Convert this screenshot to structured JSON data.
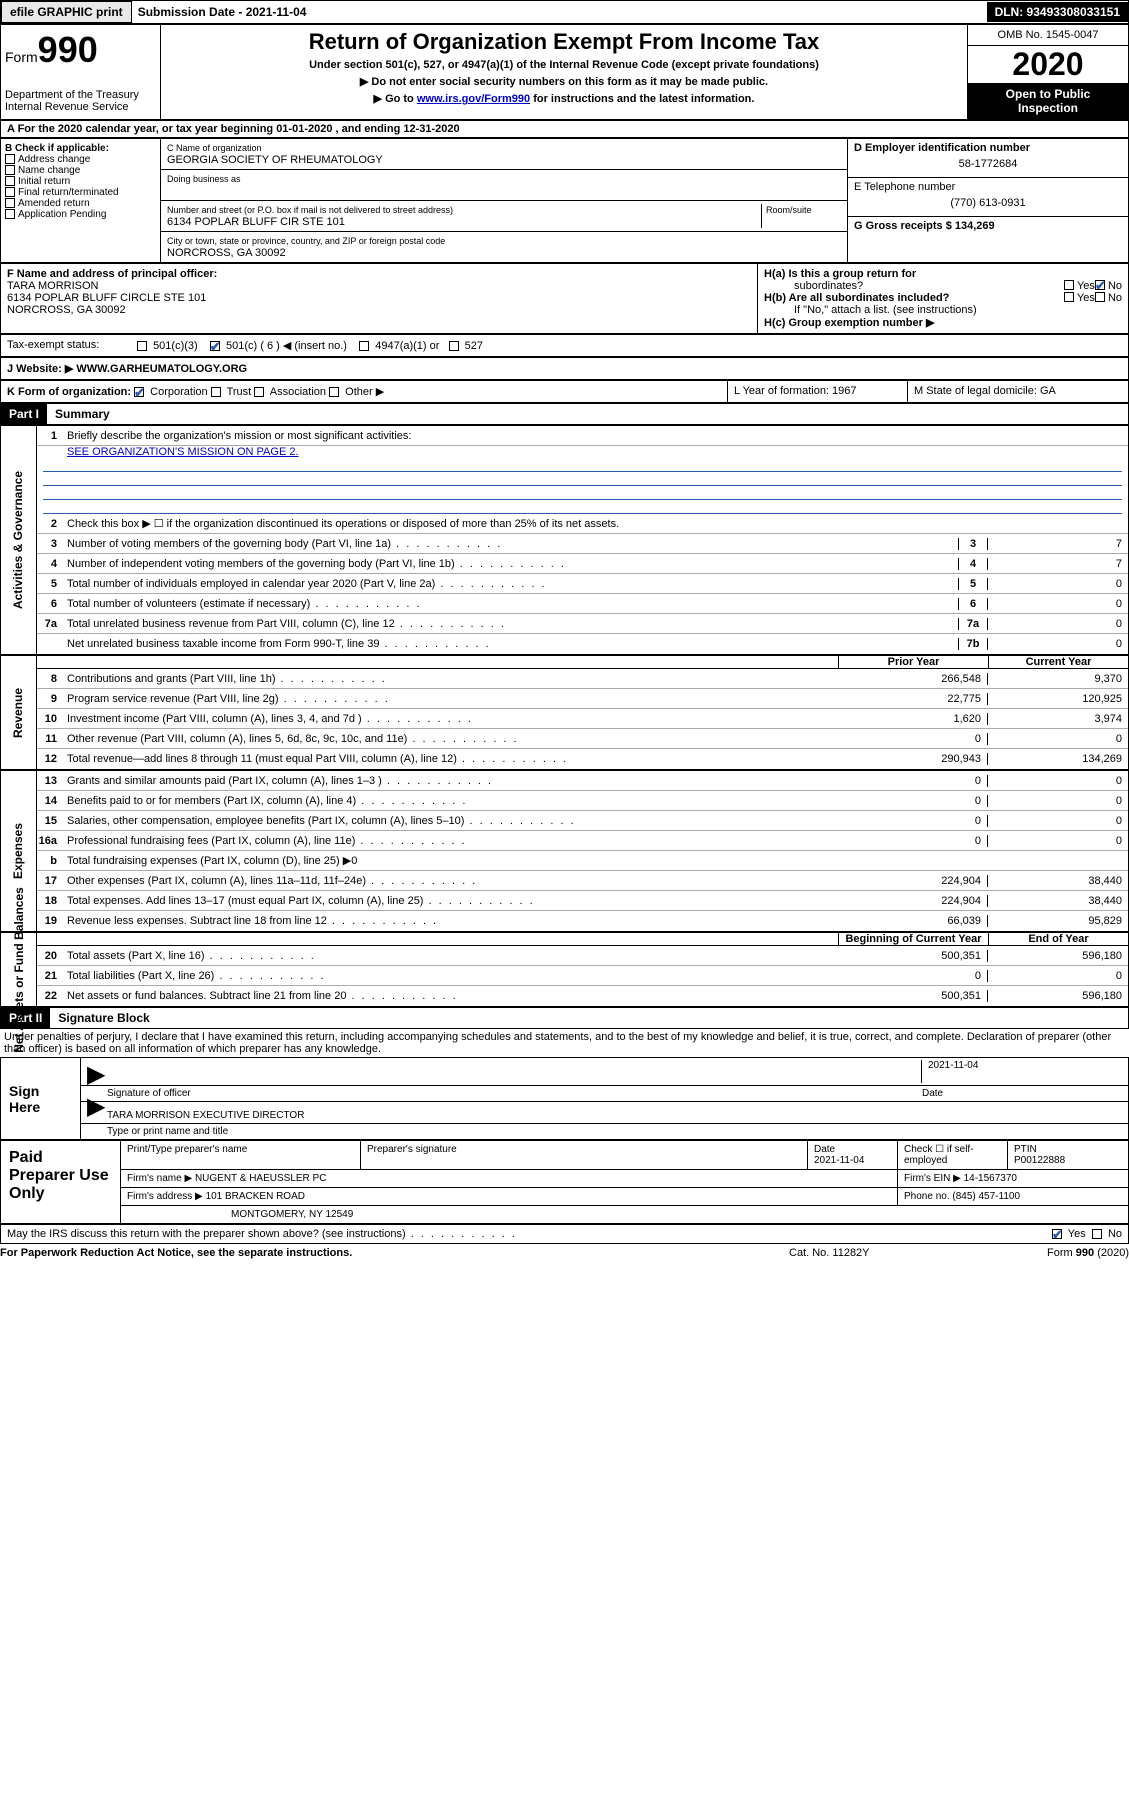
{
  "topbar": {
    "efile": "efile GRAPHIC print",
    "sublabel": "Submission Date - 2021-11-04",
    "dln": "DLN: 93493308033151"
  },
  "header": {
    "form": "Form",
    "formno": "990",
    "dept": "Department of the Treasury",
    "irs": "Internal Revenue Service",
    "title": "Return of Organization Exempt From Income Tax",
    "sub1": "Under section 501(c), 527, or 4947(a)(1) of the Internal Revenue Code (except private foundations)",
    "sub2": "▶ Do not enter social security numbers on this form as it may be made public.",
    "sub3a": "▶ Go to ",
    "sub3link": "www.irs.gov/Form990",
    "sub3b": " for instructions and the latest information.",
    "omb": "OMB No. 1545-0047",
    "year": "2020",
    "open1": "Open to Public",
    "open2": "Inspection"
  },
  "rowA": "A For the 2020 calendar year, or tax year beginning 01-01-2020    , and ending 12-31-2020",
  "boxB": {
    "label": "B Check if applicable:",
    "items": [
      "Address change",
      "Name change",
      "Initial return",
      "Final return/terminated",
      "Amended return",
      "Application Pending"
    ]
  },
  "boxC": {
    "namelbl": "C Name of organization",
    "name": "GEORGIA SOCIETY OF RHEUMATOLOGY",
    "dba": "Doing business as",
    "addrlbl": "Number and street (or P.O. box if mail is not delivered to street address)",
    "room": "Room/suite",
    "addr": "6134 POPLAR BLUFF CIR STE 101",
    "citylbl": "City or town, state or province, country, and ZIP or foreign postal code",
    "city": "NORCROSS, GA  30092"
  },
  "boxD": {
    "einlbl": "D Employer identification number",
    "ein": "58-1772684",
    "tellbl": "E Telephone number",
    "tel": "(770) 613-0931",
    "grosslbl": "G Gross receipts $ 134,269"
  },
  "boxF": {
    "lbl": "F  Name and address of principal officer:",
    "name": "TARA MORRISON",
    "addr1": "6134 POPLAR BLUFF CIRCLE STE 101",
    "addr2": "NORCROSS, GA  30092"
  },
  "boxH": {
    "ha": "H(a)  Is this a group return for",
    "ha2": "subordinates?",
    "hb": "H(b)  Are all subordinates included?",
    "hbno": "If \"No,\" attach a list. (see instructions)",
    "hc": "H(c)  Group exemption number ▶",
    "yes": "Yes",
    "no": "No"
  },
  "taxrow": {
    "lbl": "Tax-exempt status:",
    "o1": "501(c)(3)",
    "o2": "501(c) ( 6 ) ◀ (insert no.)",
    "o3": "4947(a)(1) or",
    "o4": "527"
  },
  "website": {
    "lbl": "J    Website: ▶",
    "val": "  WWW.GARHEUMATOLOGY.ORG"
  },
  "rowK": {
    "k": "K Form of organization:",
    "corp": "Corporation",
    "trust": "Trust",
    "assoc": "Association",
    "other": "Other ▶",
    "l": "L Year of formation: 1967",
    "m": "M State of legal domicile: GA"
  },
  "part1": {
    "hdr": "Part I",
    "title": "Summary"
  },
  "governance": {
    "l1a": "Briefly describe the organization's mission or most significant activities:",
    "l1b": "SEE ORGANIZATION'S MISSION ON PAGE 2.",
    "l2": "Check this box ▶ ☐  if the organization discontinued its operations or disposed of more than 25% of its net assets.",
    "items": [
      {
        "n": "3",
        "t": "Number of voting members of the governing body (Part VI, line 1a)",
        "rn": "3",
        "v": "7"
      },
      {
        "n": "4",
        "t": "Number of independent voting members of the governing body (Part VI, line 1b)",
        "rn": "4",
        "v": "7"
      },
      {
        "n": "5",
        "t": "Total number of individuals employed in calendar year 2020 (Part V, line 2a)",
        "rn": "5",
        "v": "0"
      },
      {
        "n": "6",
        "t": "Total number of volunteers (estimate if necessary)",
        "rn": "6",
        "v": "0"
      },
      {
        "n": "7a",
        "t": "Total unrelated business revenue from Part VIII, column (C), line 12",
        "rn": "7a",
        "v": "0"
      },
      {
        "n": "",
        "t": "Net unrelated business taxable income from Form 990-T, line 39",
        "rn": "7b",
        "v": "0"
      }
    ],
    "sidelabel": "Activities & Governance"
  },
  "revenue": {
    "hprior": "Prior Year",
    "hcur": "Current Year",
    "items": [
      {
        "n": "8",
        "t": "Contributions and grants (Part VIII, line 1h)",
        "p": "266,548",
        "c": "9,370"
      },
      {
        "n": "9",
        "t": "Program service revenue (Part VIII, line 2g)",
        "p": "22,775",
        "c": "120,925"
      },
      {
        "n": "10",
        "t": "Investment income (Part VIII, column (A), lines 3, 4, and 7d )",
        "p": "1,620",
        "c": "3,974"
      },
      {
        "n": "11",
        "t": "Other revenue (Part VIII, column (A), lines 5, 6d, 8c, 9c, 10c, and 11e)",
        "p": "0",
        "c": "0"
      },
      {
        "n": "12",
        "t": "Total revenue—add lines 8 through 11 (must equal Part VIII, column (A), line 12)",
        "p": "290,943",
        "c": "134,269"
      }
    ],
    "sidelabel": "Revenue"
  },
  "expenses": {
    "items": [
      {
        "n": "13",
        "t": "Grants and similar amounts paid (Part IX, column (A), lines 1–3 )",
        "p": "0",
        "c": "0"
      },
      {
        "n": "14",
        "t": "Benefits paid to or for members (Part IX, column (A), line 4)",
        "p": "0",
        "c": "0"
      },
      {
        "n": "15",
        "t": "Salaries, other compensation, employee benefits (Part IX, column (A), lines 5–10)",
        "p": "0",
        "c": "0"
      },
      {
        "n": "16a",
        "t": "Professional fundraising fees (Part IX, column (A), line 11e)",
        "p": "0",
        "c": "0"
      },
      {
        "n": "b",
        "t": "Total fundraising expenses (Part IX, column (D), line 25) ▶0",
        "p": "",
        "c": "",
        "shade": true
      },
      {
        "n": "17",
        "t": "Other expenses (Part IX, column (A), lines 11a–11d, 11f–24e)",
        "p": "224,904",
        "c": "38,440"
      },
      {
        "n": "18",
        "t": "Total expenses. Add lines 13–17 (must equal Part IX, column (A), line 25)",
        "p": "224,904",
        "c": "38,440"
      },
      {
        "n": "19",
        "t": "Revenue less expenses. Subtract line 18 from line 12",
        "p": "66,039",
        "c": "95,829"
      }
    ],
    "sidelabel": "Expenses"
  },
  "netassets": {
    "hbeg": "Beginning of Current Year",
    "hend": "End of Year",
    "items": [
      {
        "n": "20",
        "t": "Total assets (Part X, line 16)",
        "p": "500,351",
        "c": "596,180"
      },
      {
        "n": "21",
        "t": "Total liabilities (Part X, line 26)",
        "p": "0",
        "c": "0"
      },
      {
        "n": "22",
        "t": "Net assets or fund balances. Subtract line 21 from line 20",
        "p": "500,351",
        "c": "596,180"
      }
    ],
    "sidelabel": "Net Assets or Fund Balances"
  },
  "part2": {
    "hdr": "Part II",
    "title": "Signature Block"
  },
  "penalties": "Under penalties of perjury, I declare that I have examined this return, including accompanying schedules and statements, and to the best of my knowledge and belief, it is true, correct, and complete. Declaration of preparer (other than officer) is based on all information of which preparer has any knowledge.",
  "sign": {
    "label": "Sign Here",
    "sig": "Signature of officer",
    "date": "2021-11-04",
    "datelbl": "Date",
    "name": "TARA MORRISON  EXECUTIVE DIRECTOR",
    "namelbl": "Type or print name and title"
  },
  "paid": {
    "label": "Paid Preparer Use Only",
    "h": {
      "c1": "Print/Type preparer's name",
      "c2": "Preparer's signature",
      "c3": "Date",
      "c4": "Check ☐ if self-employed",
      "c5": "PTIN"
    },
    "r1": {
      "date": "2021-11-04",
      "ptin": "P00122888"
    },
    "r2": {
      "l": "Firm's name      ▶ NUGENT & HAEUSSLER PC",
      "r": "Firm's EIN ▶ 14-1567370"
    },
    "r3": {
      "l": "Firm's address ▶ 101 BRACKEN ROAD",
      "r": "Phone no. (845) 457-1100"
    },
    "r4": "MONTGOMERY, NY 12549"
  },
  "discuss": {
    "t": "May the IRS discuss this return with the preparer shown above? (see instructions)",
    "yes": "Yes",
    "no": "No"
  },
  "footer": {
    "f1": "For Paperwork Reduction Act Notice, see the separate instructions.",
    "f2": "Cat. No. 11282Y",
    "f3": "Form 990 (2020)"
  }
}
